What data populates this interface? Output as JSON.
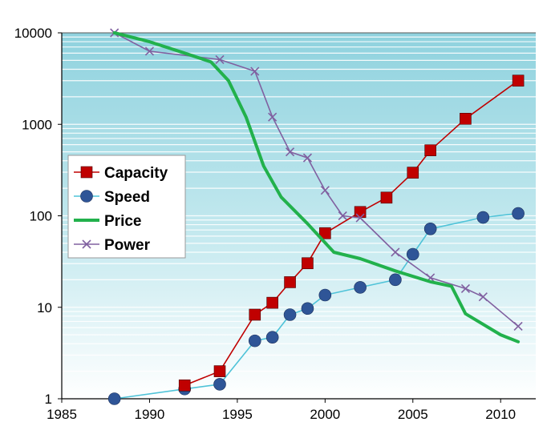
{
  "chart_data": {
    "type": "line",
    "y_scale": "log",
    "xlim": [
      1985,
      2012
    ],
    "ylim": [
      1,
      10000
    ],
    "x_ticks": [
      "1985",
      "1990",
      "1995",
      "2000",
      "2005",
      "2010"
    ],
    "y_ticks": [
      "1",
      "10",
      "100",
      "1000",
      "10000"
    ],
    "grid": true,
    "legend_position": "left",
    "series": [
      {
        "name": "Capacity",
        "color": "#c00000",
        "marker": "square",
        "x": [
          1992,
          1994,
          1996,
          1997,
          1998,
          1999,
          2000,
          2002,
          2003.5,
          2005,
          2006,
          2008,
          2011
        ],
        "y": [
          1.4,
          2.0,
          8.3,
          11.2,
          18.8,
          30.3,
          64.5,
          110,
          158,
          296,
          520,
          1150,
          3000
        ]
      },
      {
        "name": "Speed",
        "color": "#2f5597",
        "line_color": "#4fc3d8",
        "marker": "circle",
        "x": [
          1988,
          1992,
          1994,
          1996,
          1997,
          1998,
          1999,
          2000,
          2002,
          2004,
          2005,
          2006,
          2009,
          2011
        ],
        "y": [
          1.0,
          1.28,
          1.44,
          4.3,
          4.7,
          8.3,
          9.7,
          13.6,
          16.5,
          20,
          38,
          72,
          96,
          106
        ]
      },
      {
        "name": "Price",
        "color": "#22b14c",
        "marker": "none",
        "x": [
          1988,
          1990,
          1992,
          1993.5,
          1994.5,
          1995.5,
          1996.5,
          1997.5,
          1999,
          2000.5,
          2002,
          2004,
          2006,
          2007.2,
          2008,
          2010,
          2011
        ],
        "y": [
          10000,
          8000,
          6000,
          4800,
          3000,
          1200,
          350,
          160,
          82,
          40,
          34,
          25,
          19,
          17,
          8.5,
          5,
          4.2
        ]
      },
      {
        "name": "Power",
        "color": "#8060a0",
        "marker": "x",
        "x": [
          1988,
          1990,
          1994,
          1996,
          1997,
          1998,
          1999,
          2000,
          2001,
          2002,
          2004,
          2006,
          2008,
          2009,
          2011
        ],
        "y": [
          10000,
          6300,
          5100,
          3800,
          1200,
          500,
          430,
          190,
          100,
          95,
          40,
          21,
          16,
          13,
          6.2
        ]
      }
    ]
  }
}
